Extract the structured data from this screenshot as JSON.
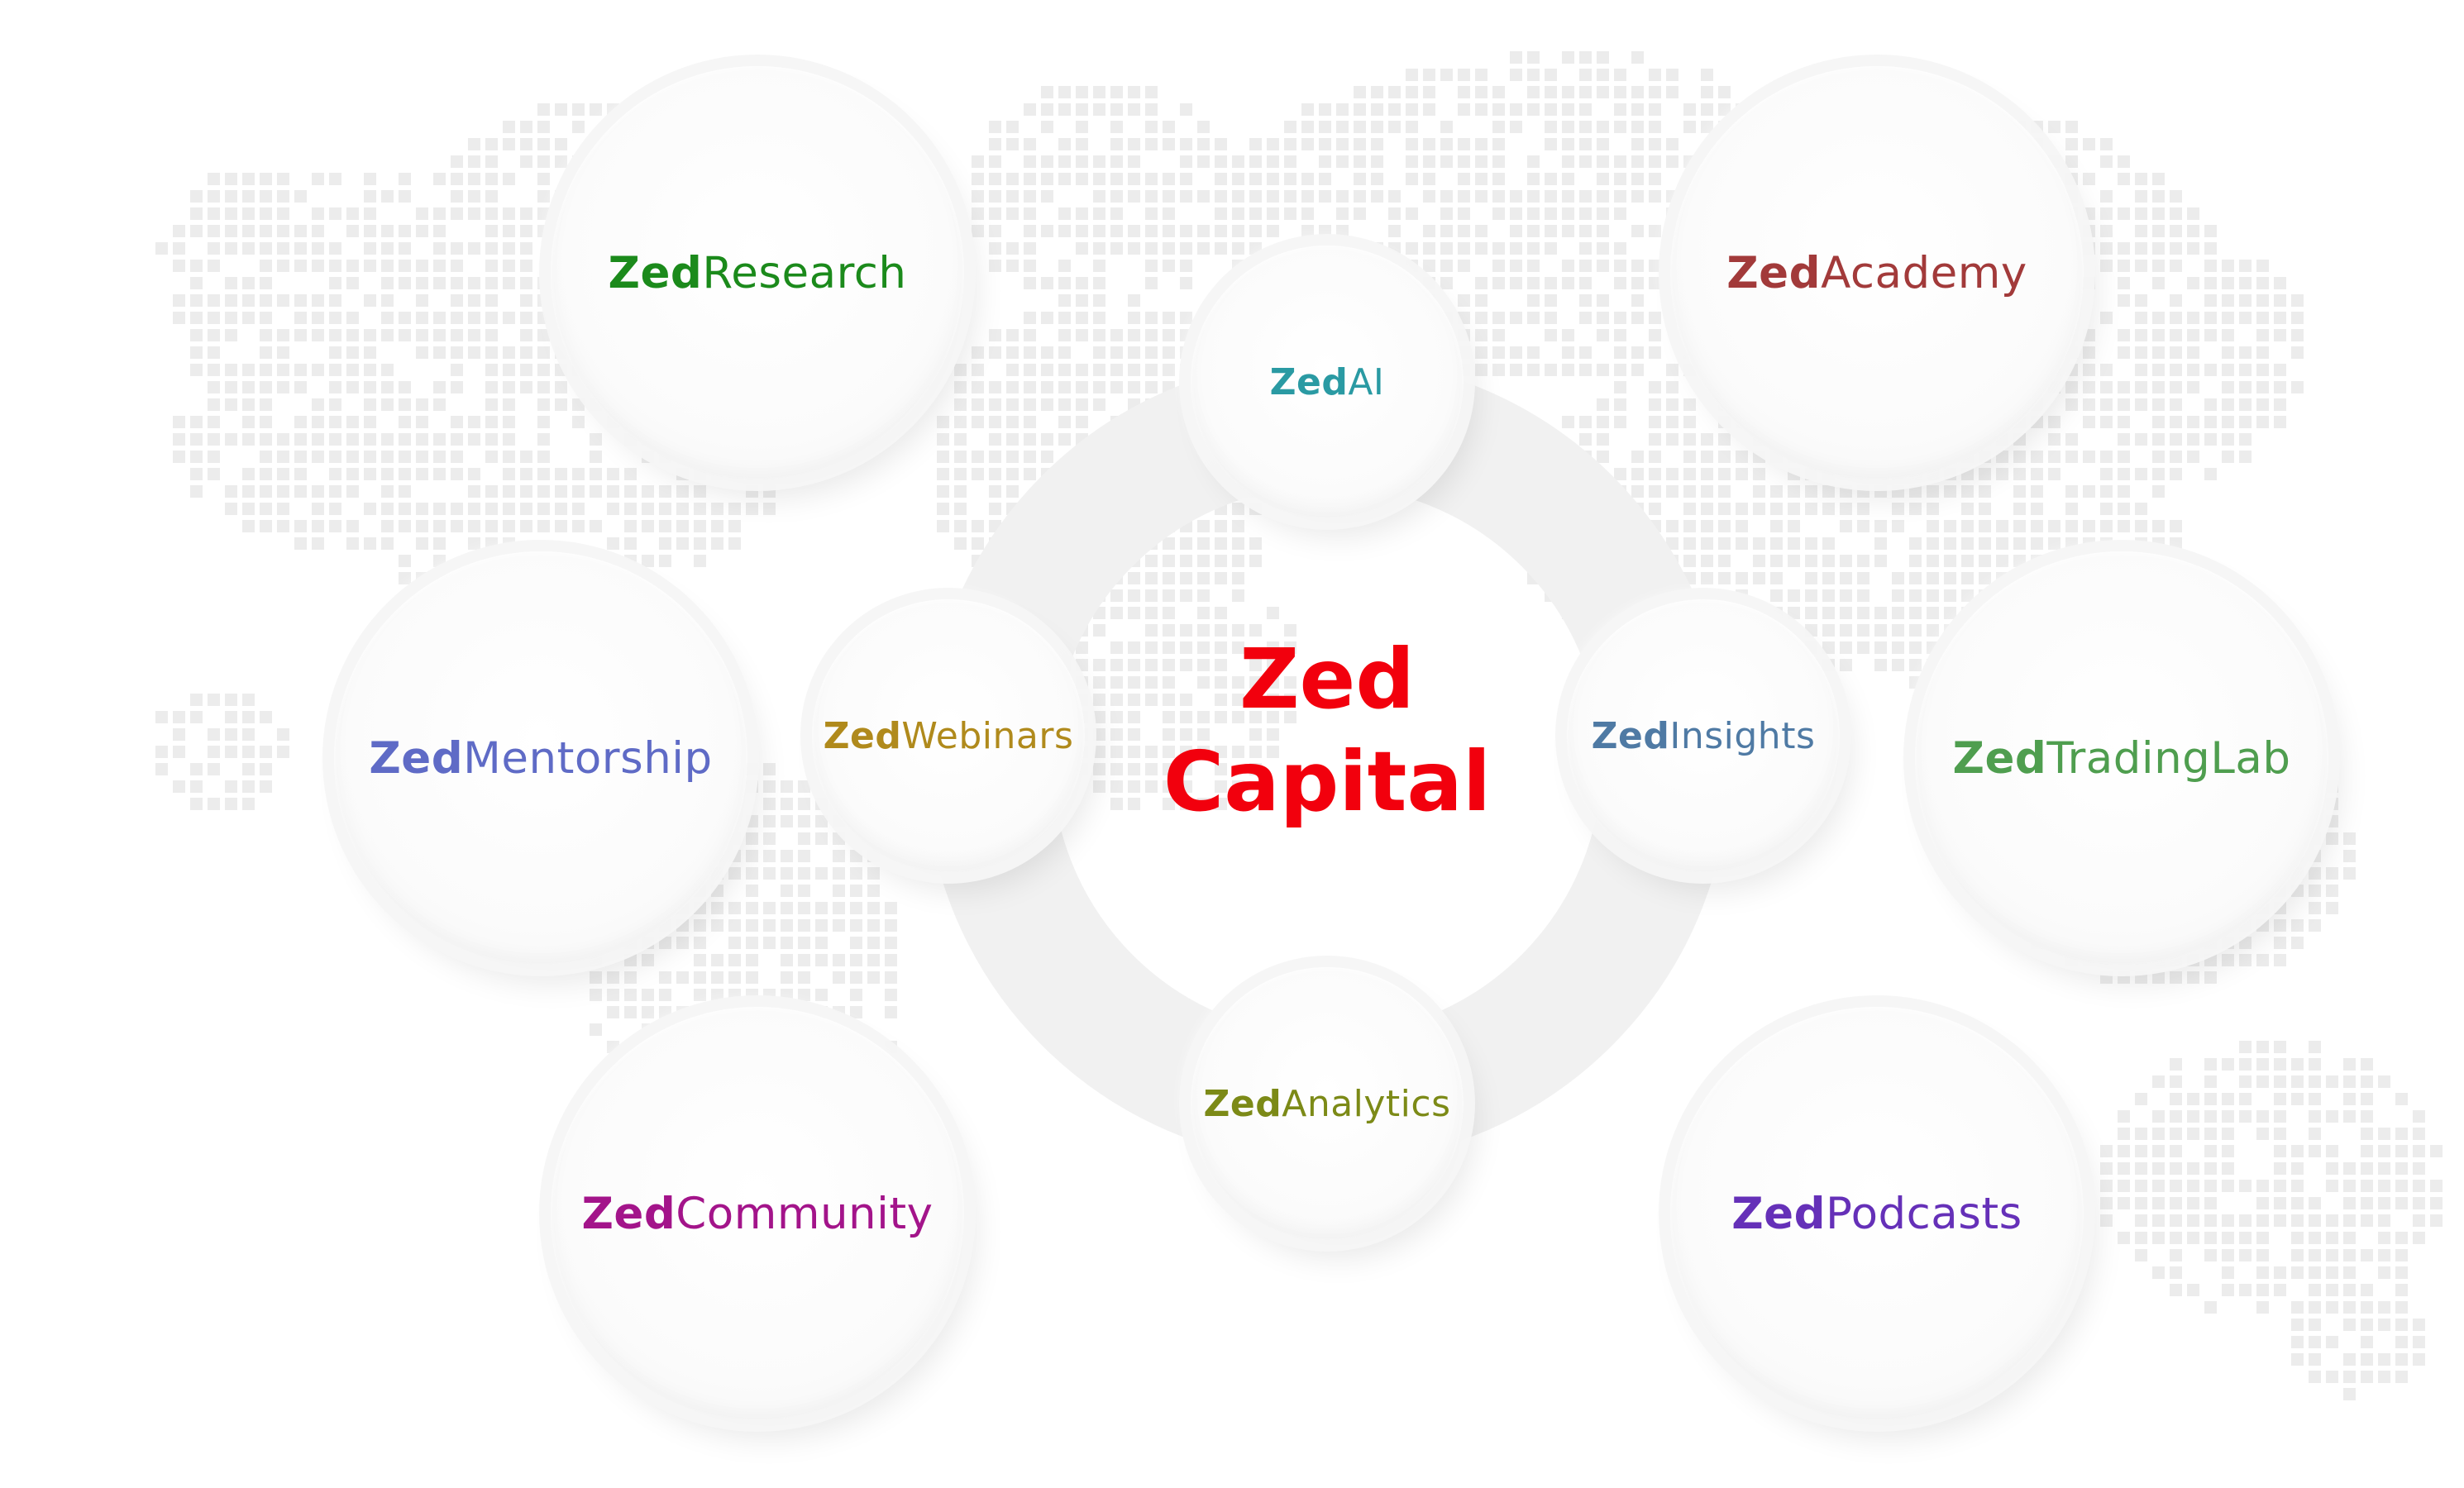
{
  "center": {
    "line1": "Zed",
    "line2": "Capital",
    "color": "#f2000d"
  },
  "nodes": {
    "research": {
      "prefix": "Zed",
      "suffix": "Research",
      "color": "#1b8a1b"
    },
    "academy": {
      "prefix": "Zed",
      "suffix": "Academy",
      "color": "#a23a3a"
    },
    "mentorship": {
      "prefix": "Zed",
      "suffix": "Mentorship",
      "color": "#5f6bc6"
    },
    "tradinglab": {
      "prefix": "Zed",
      "suffix": "TradingLab",
      "color": "#4f9e4f"
    },
    "community": {
      "prefix": "Zed",
      "suffix": "Community",
      "color": "#a3148a"
    },
    "podcasts": {
      "prefix": "Zed",
      "suffix": "Podcasts",
      "color": "#6530b8"
    },
    "ai": {
      "prefix": "Zed",
      "suffix": "AI",
      "color": "#2a9aa3"
    },
    "webinars": {
      "prefix": "Zed",
      "suffix": "Webinars",
      "color": "#b08a1c"
    },
    "insights": {
      "prefix": "Zed",
      "suffix": "Insights",
      "color": "#4f7aa4"
    },
    "analytics": {
      "prefix": "Zed",
      "suffix": "Analytics",
      "color": "#7c8a17"
    }
  },
  "background": {
    "map_dot_color": "#ececec",
    "ring_color": "#f1f1f1"
  }
}
